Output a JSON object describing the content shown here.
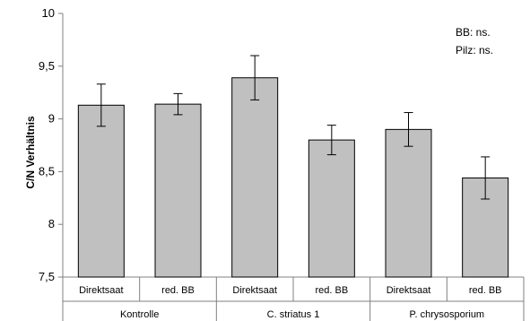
{
  "chart_data": {
    "type": "bar",
    "title": "",
    "ylabel": "C/N Verhältnis",
    "xlabel": "",
    "ylim": [
      7.5,
      10
    ],
    "yticks": [
      7.5,
      8,
      8.5,
      9,
      9.5,
      10
    ],
    "ytick_labels": [
      "7,5",
      "8",
      "8,5",
      "9",
      "9,5",
      "10"
    ],
    "groups": [
      {
        "label": "Kontrolle",
        "categories": [
          "Direktsaat",
          "red. BB"
        ]
      },
      {
        "label": "C. striatus 1",
        "categories": [
          "Direktsaat",
          "red. BB"
        ]
      },
      {
        "label": "P. chrysosporium",
        "categories": [
          "Direktsaat",
          "red. BB"
        ]
      }
    ],
    "categories": [
      "Direktsaat",
      "red. BB",
      "Direktsaat",
      "red. BB",
      "Direktsaat",
      "red. BB"
    ],
    "values": [
      9.13,
      9.14,
      9.39,
      8.8,
      8.9,
      8.44
    ],
    "errors": [
      0.2,
      0.1,
      0.21,
      0.14,
      0.16,
      0.2
    ],
    "bar_color": "#c0c0c0",
    "annotations": [
      "BB: ns.",
      "Pilz: ns."
    ],
    "grid": false,
    "legend": "none"
  }
}
